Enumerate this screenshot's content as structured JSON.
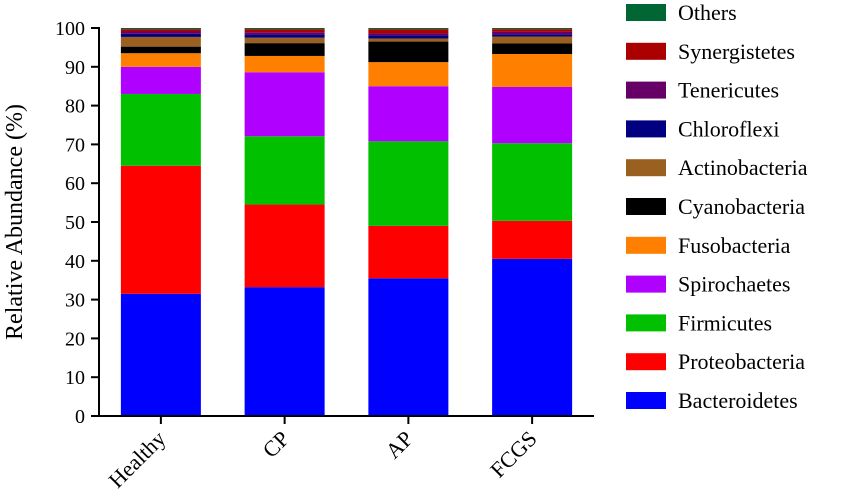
{
  "chart_data": {
    "type": "bar",
    "stacked": true,
    "ylabel": "Relative Abundance (%)",
    "xlabel": "",
    "ylim": [
      0,
      100
    ],
    "yticks": [
      "0",
      "10",
      "20",
      "30",
      "40",
      "50",
      "60",
      "70",
      "80",
      "90",
      "100"
    ],
    "categories": [
      "Healthy",
      "CP",
      "AP",
      "FCGS"
    ],
    "legend_position": "right",
    "series": [
      {
        "name": "Bacteroidetes",
        "color": "#0000ff",
        "values": [
          31.5,
          33.2,
          35.5,
          40.5
        ]
      },
      {
        "name": "Proteobacteria",
        "color": "#ff0000",
        "values": [
          33.0,
          21.3,
          13.5,
          9.8
        ]
      },
      {
        "name": "Firmicutes",
        "color": "#00c000",
        "values": [
          18.5,
          17.6,
          21.8,
          20.0
        ]
      },
      {
        "name": "Spirochaetes",
        "color": "#b000ff",
        "values": [
          7.0,
          16.5,
          14.2,
          14.5
        ]
      },
      {
        "name": "Fusobacteria",
        "color": "#ff8000",
        "values": [
          3.5,
          4.2,
          6.2,
          8.5
        ]
      },
      {
        "name": "Cyanobacteria",
        "color": "#000000",
        "values": [
          1.7,
          3.3,
          5.3,
          2.7
        ]
      },
      {
        "name": "Actinobacteria",
        "color": "#996020",
        "values": [
          2.5,
          1.4,
          0.8,
          1.8
        ]
      },
      {
        "name": "Chloroflexi",
        "color": "#000080",
        "values": [
          0.8,
          0.8,
          0.8,
          0.6
        ]
      },
      {
        "name": "Tenericutes",
        "color": "#660066",
        "values": [
          0.6,
          0.6,
          0.5,
          0.6
        ]
      },
      {
        "name": "Synergistetes",
        "color": "#aa0000",
        "values": [
          0.6,
          0.8,
          1.1,
          0.7
        ]
      },
      {
        "name": "Others",
        "color": "#006633",
        "values": [
          0.3,
          0.3,
          0.3,
          0.3
        ]
      }
    ]
  }
}
